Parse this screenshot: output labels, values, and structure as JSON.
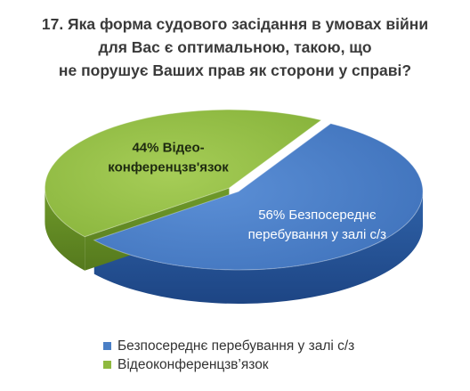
{
  "chart_data": {
    "type": "pie",
    "style": "3d",
    "title_lines": [
      "17. Яка форма судового засідання в умовах війни",
      "для Вас є оптимальною,  такою, що",
      "не порушує Ваших прав як сторони у справі?"
    ],
    "slices": [
      {
        "name": "Безпосереднє перебування у залі с/з",
        "value": 56,
        "label_lines": [
          "56%  Безпосереднє",
          "перебування у залі с/з"
        ],
        "color": "#4a7fc6"
      },
      {
        "name": "Відеоконференцзв’язок",
        "value": 44,
        "label_lines": [
          "44%  Відео-",
          "конференцзв'язок"
        ],
        "color": "#8fb93f"
      }
    ],
    "legend_position": "bottom"
  }
}
